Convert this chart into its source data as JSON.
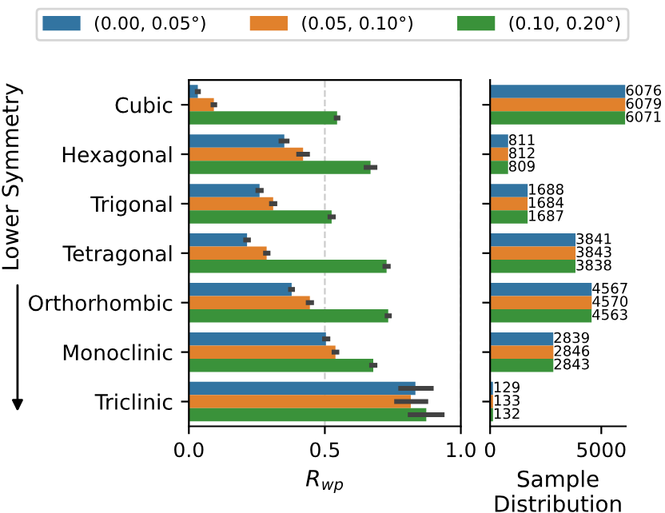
{
  "chart_data": [
    {
      "type": "bar",
      "orientation": "horizontal",
      "xlabel": "R$_{wp}$",
      "ylabel": "Lower Symmetry",
      "categories": [
        "Cubic",
        "Hexagonal",
        "Trigonal",
        "Tetragonal",
        "Orthorhombic",
        "Monoclinic",
        "Triclinic"
      ],
      "series": [
        {
          "name": "(0.00, 0.05°)",
          "color": "#3274a1",
          "values": [
            0.033,
            0.351,
            0.26,
            0.214,
            0.378,
            0.504,
            0.833
          ],
          "errors": [
            [
              0.022,
              0.044
            ],
            [
              0.33,
              0.37
            ],
            [
              0.245,
              0.275
            ],
            [
              0.2,
              0.228
            ],
            [
              0.365,
              0.39
            ],
            [
              0.49,
              0.52
            ],
            [
              0.77,
              0.9
            ]
          ]
        },
        {
          "name": "(0.05, 0.10°)",
          "color": "#e1812c",
          "values": [
            0.092,
            0.42,
            0.31,
            0.286,
            0.445,
            0.539,
            0.816
          ],
          "errors": [
            [
              0.08,
              0.104
            ],
            [
              0.395,
              0.445
            ],
            [
              0.295,
              0.325
            ],
            [
              0.273,
              0.3
            ],
            [
              0.43,
              0.46
            ],
            [
              0.525,
              0.553
            ],
            [
              0.755,
              0.88
            ]
          ]
        },
        {
          "name": "(0.10, 0.20°)",
          "color": "#3a923a",
          "values": [
            0.545,
            0.668,
            0.525,
            0.727,
            0.733,
            0.678,
            0.873
          ],
          "errors": [
            [
              0.533,
              0.557
            ],
            [
              0.643,
              0.693
            ],
            [
              0.51,
              0.54
            ],
            [
              0.712,
              0.742
            ],
            [
              0.72,
              0.746
            ],
            [
              0.663,
              0.693
            ],
            [
              0.805,
              0.94
            ]
          ]
        }
      ],
      "xlim": [
        0,
        1
      ],
      "xticks": [
        {
          "value": 0,
          "label": "0.0"
        },
        {
          "value": 0.5,
          "label": "0.5"
        },
        {
          "value": 1,
          "label": "1.0"
        }
      ],
      "grid": "x",
      "legend": "top"
    },
    {
      "type": "bar",
      "orientation": "horizontal",
      "xlabel": "Sample\nDistribution",
      "categories": [
        null,
        null,
        null,
        null,
        null,
        null,
        null
      ],
      "series": [
        {
          "color": "#3274a1",
          "values": [
            6076,
            811,
            1688,
            3841,
            4567,
            2839,
            129
          ]
        },
        {
          "color": "#e1812c",
          "values": [
            6079,
            812,
            1684,
            3843,
            4570,
            2846,
            133
          ]
        },
        {
          "color": "#3a923a",
          "values": [
            6071,
            809,
            1687,
            3838,
            4563,
            2843,
            132
          ]
        }
      ],
      "xlim": [
        0,
        6100
      ],
      "xticks": [
        0,
        5000
      ],
      "data_labels": true,
      "tick_labels": "x"
    }
  ]
}
